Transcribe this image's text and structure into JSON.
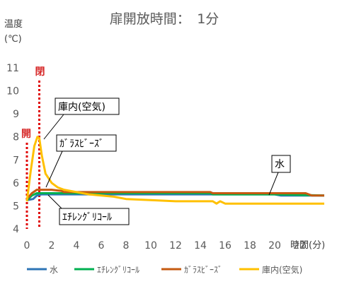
{
  "chart_data": {
    "type": "line",
    "title": "扉開放時間：　1分",
    "ylabel_line1": "温度",
    "ylabel_line2": "(℃)",
    "xlabel": "時間(分)",
    "xlim": [
      0,
      24
    ],
    "ylim": [
      4,
      11
    ],
    "x_ticks": [
      "0",
      "2",
      "4",
      "6",
      "8",
      "10",
      "12",
      "14",
      "16",
      "18",
      "20",
      "22"
    ],
    "y_ticks": [
      "4",
      "5",
      "6",
      "7",
      "8",
      "9",
      "10",
      "11"
    ],
    "grid": false,
    "legend_position": "bottom",
    "markers": [
      {
        "label": "開",
        "x": 0
      },
      {
        "label": "閉",
        "x": 1
      }
    ],
    "series": [
      {
        "name": "水",
        "color": "#2e75b6",
        "x": [
          0,
          0.5,
          0.8,
          1.2,
          2,
          5,
          10,
          15,
          20,
          20.5,
          22.5,
          23,
          24
        ],
        "y": [
          5.25,
          5.3,
          5.45,
          5.5,
          5.5,
          5.5,
          5.5,
          5.5,
          5.5,
          5.45,
          5.45,
          5.45,
          5.45
        ]
      },
      {
        "name": "ｴﾁﾚﾝｸﾞﾘｺｰﾙ",
        "color": "#00b050",
        "x": [
          0,
          0.4,
          0.8,
          1.2,
          3,
          5,
          10,
          14.8,
          15,
          20,
          24
        ],
        "y": [
          5.25,
          5.45,
          5.55,
          5.55,
          5.55,
          5.55,
          5.55,
          5.55,
          5.5,
          5.5,
          5.45
        ]
      },
      {
        "name": "ｶﾞﾗｽﾋﾞｰｽﾞ",
        "color": "#c55a11",
        "x": [
          0,
          0.4,
          0.8,
          1.0,
          2,
          2.8,
          3,
          5,
          10,
          14.8,
          15,
          20,
          22.5,
          23,
          24
        ],
        "y": [
          5.3,
          5.55,
          5.7,
          5.7,
          5.7,
          5.65,
          5.6,
          5.6,
          5.6,
          5.6,
          5.55,
          5.55,
          5.55,
          5.45,
          5.45
        ]
      },
      {
        "name": "庫内(空気)",
        "color": "#ffc000",
        "x": [
          0,
          0.3,
          0.6,
          0.85,
          1.0,
          1.2,
          1.5,
          2,
          2.5,
          3,
          4,
          5,
          6,
          7,
          8,
          10,
          12,
          14,
          15,
          15.3,
          15.6,
          16,
          20,
          24
        ],
        "y": [
          5.2,
          6.5,
          7.6,
          8.0,
          7.95,
          7.2,
          6.4,
          6.0,
          5.8,
          5.7,
          5.6,
          5.5,
          5.45,
          5.4,
          5.3,
          5.25,
          5.2,
          5.2,
          5.2,
          5.1,
          5.2,
          5.1,
          5.1,
          5.1
        ]
      }
    ],
    "callouts": [
      {
        "text": "庫内(空気)"
      },
      {
        "text": "ｶﾞﾗｽﾋﾞｰｽﾞ"
      },
      {
        "text": "水"
      },
      {
        "text": "ｴﾁﾚﾝｸﾞﾘｺｰﾙ"
      }
    ]
  }
}
